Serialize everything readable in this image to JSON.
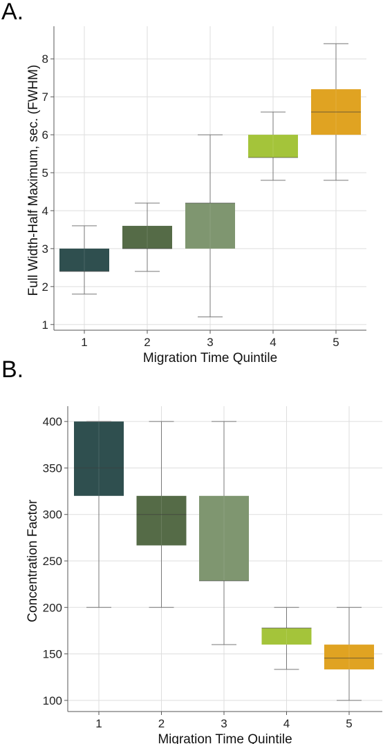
{
  "chart_data": [
    {
      "panel_label": "A.",
      "type": "box",
      "xlabel": "Migration Time Quintile",
      "ylabel": "Full Width-Half Maximum, sec. (FWHM)",
      "categories": [
        "1",
        "2",
        "3",
        "4",
        "5"
      ],
      "yticks": [
        1,
        2,
        3,
        4,
        5,
        6,
        7,
        8
      ],
      "ylim": [
        0.85,
        8.75
      ],
      "grid": true,
      "boxes": [
        {
          "whisker_low": 1.8,
          "q1": 2.4,
          "median": 2.4,
          "q3": 3.0,
          "whisker_high": 3.6,
          "color": "#2f4f4f"
        },
        {
          "whisker_low": 2.4,
          "q1": 3.0,
          "median": 3.0,
          "q3": 3.6,
          "whisker_high": 4.2,
          "color": "#556b47"
        },
        {
          "whisker_low": 1.2,
          "q1": 3.0,
          "median": 4.2,
          "q3": 4.2,
          "whisker_high": 6.0,
          "color": "#7f9670"
        },
        {
          "whisker_low": 4.8,
          "q1": 5.4,
          "median": 5.4,
          "q3": 6.0,
          "whisker_high": 6.6,
          "color": "#a4c43a"
        },
        {
          "whisker_low": 4.8,
          "q1": 6.0,
          "median": 6.6,
          "q3": 7.2,
          "whisker_high": 8.4,
          "color": "#e0a322"
        }
      ]
    },
    {
      "panel_label": "B.",
      "type": "box",
      "xlabel": "Migration Time Quintile",
      "ylabel": "Concentration Factor",
      "categories": [
        "1",
        "2",
        "3",
        "4",
        "5"
      ],
      "yticks": [
        100,
        150,
        200,
        250,
        300,
        350,
        400
      ],
      "ylim": [
        88,
        412
      ],
      "grid": true,
      "boxes": [
        {
          "whisker_low": 200,
          "q1": 320,
          "median": 350,
          "q3": 400,
          "whisker_high": 400,
          "color": "#2f4f4f"
        },
        {
          "whisker_low": 200,
          "q1": 266.7,
          "median": 300,
          "q3": 320,
          "whisker_high": 400,
          "color": "#556b47"
        },
        {
          "whisker_low": 160,
          "q1": 228.6,
          "median": 228.6,
          "q3": 320,
          "whisker_high": 400,
          "color": "#7f9670"
        },
        {
          "whisker_low": 133.3,
          "q1": 160,
          "median": 177.8,
          "q3": 177.8,
          "whisker_high": 200,
          "color": "#a4c43a"
        },
        {
          "whisker_low": 100,
          "q1": 133.3,
          "median": 145.5,
          "q3": 160,
          "whisker_high": 200,
          "color": "#e0a322"
        }
      ]
    }
  ]
}
